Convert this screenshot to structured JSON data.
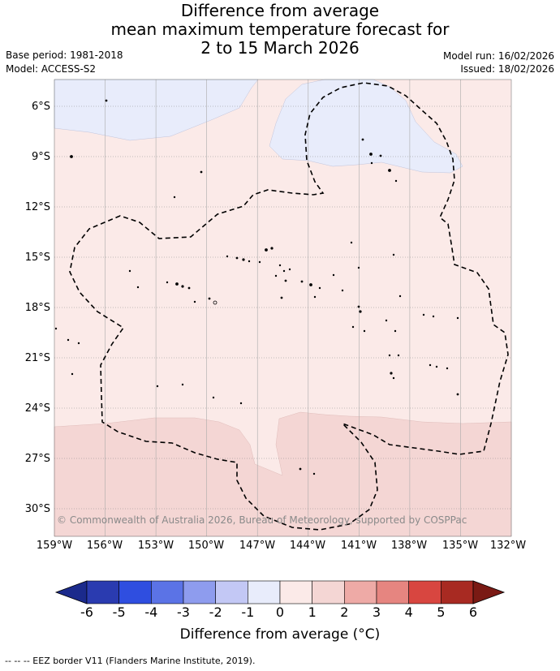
{
  "title": {
    "line1": "Difference from average",
    "line2": "mean maximum temperature forecast for",
    "line3": "2 to 15 March 2026"
  },
  "meta": {
    "base_period": "Base period: 1981-2018",
    "model": "Model: ACCESS-S2",
    "model_run": "Model run: 16/02/2026",
    "issued": "Issued: 18/02/2026"
  },
  "map": {
    "lat_labels": [
      "6°S",
      "9°S",
      "12°S",
      "15°S",
      "18°S",
      "21°S",
      "24°S",
      "27°S",
      "30°S"
    ],
    "lon_labels": [
      "159°W",
      "156°W",
      "153°W",
      "150°W",
      "147°W",
      "144°W",
      "141°W",
      "138°W",
      "135°W",
      "132°W"
    ],
    "copyright": "© Commonwealth of Australia 2026, Bureau of Meteorology, supported by COSPPac",
    "colors": {
      "background_anomaly_0_1": "#fbeae8",
      "anomaly_1_2": "#f4d6d4",
      "anomaly_neg1_0": "#e8ecfb",
      "gridline": "#999999",
      "eez_border": "#000000"
    }
  },
  "colorbar": {
    "ticks": [
      "-6",
      "-5",
      "-4",
      "-3",
      "-2",
      "-1",
      "0",
      "1",
      "2",
      "3",
      "4",
      "5",
      "6"
    ],
    "colors": [
      "#1b2a8c",
      "#2a3bb0",
      "#2f4ee0",
      "#5b73e6",
      "#8e9cee",
      "#c3c8f5",
      "#e8ecfb",
      "#fbeae8",
      "#f4d6d4",
      "#eeaaa6",
      "#e68580",
      "#d84640",
      "#a82a22",
      "#7a1a14"
    ],
    "label": "Difference from average (°C)"
  },
  "footnote": "-- -- -- EEZ border V11 (Flanders Marine Institute, 2019)."
}
